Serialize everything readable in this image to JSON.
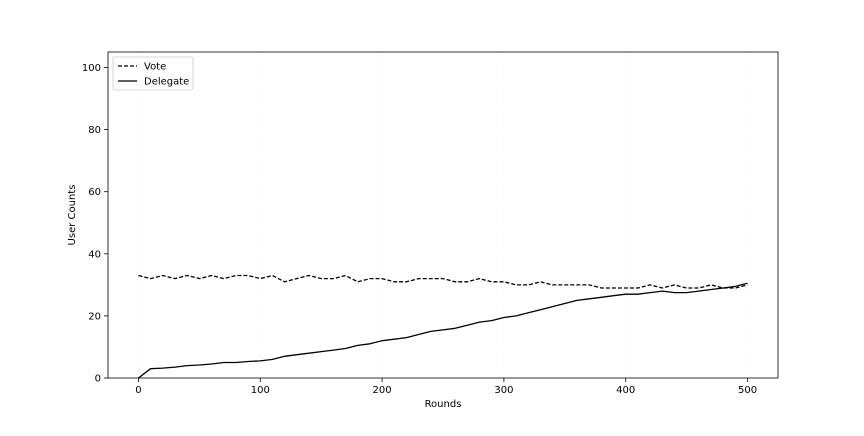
{
  "chart_data": {
    "type": "line",
    "title": "",
    "xlabel": "Rounds",
    "ylabel": "User Counts",
    "xlim": [
      -25,
      525
    ],
    "ylim": [
      0,
      105
    ],
    "xticks": [
      0,
      100,
      200,
      300,
      400,
      500
    ],
    "yticks": [
      0,
      20,
      40,
      60,
      80,
      100
    ],
    "grid": "vertical-faint",
    "legend_position": "top-left",
    "series": [
      {
        "name": "Vote",
        "style": "dashed",
        "color": "#000000",
        "x": [
          0,
          10,
          20,
          30,
          40,
          50,
          60,
          70,
          80,
          90,
          100,
          110,
          120,
          130,
          140,
          150,
          160,
          170,
          180,
          190,
          200,
          210,
          220,
          230,
          240,
          250,
          260,
          270,
          280,
          290,
          300,
          310,
          320,
          330,
          340,
          350,
          360,
          370,
          380,
          390,
          400,
          410,
          420,
          430,
          440,
          450,
          460,
          470,
          480,
          490,
          500
        ],
        "values": [
          33,
          32,
          33,
          32,
          33,
          32,
          33,
          32,
          33,
          33,
          32,
          33,
          31,
          32,
          33,
          32,
          32,
          33,
          31,
          32,
          32,
          31,
          31,
          32,
          32,
          32,
          31,
          31,
          32,
          31,
          31,
          30,
          30,
          31,
          30,
          30,
          30,
          30,
          29,
          29,
          29,
          29,
          30,
          29,
          30,
          29,
          29,
          30,
          29,
          29,
          30
        ]
      },
      {
        "name": "Delegate",
        "style": "solid",
        "color": "#000000",
        "x": [
          0,
          10,
          20,
          30,
          40,
          50,
          60,
          70,
          80,
          90,
          100,
          110,
          120,
          130,
          140,
          150,
          160,
          170,
          180,
          190,
          200,
          210,
          220,
          230,
          240,
          250,
          260,
          270,
          280,
          290,
          300,
          310,
          320,
          330,
          340,
          350,
          360,
          370,
          380,
          390,
          400,
          410,
          420,
          430,
          440,
          450,
          460,
          470,
          480,
          490,
          500
        ],
        "values": [
          0,
          3,
          3.2,
          3.5,
          4,
          4.2,
          4.5,
          5,
          5,
          5.3,
          5.5,
          6,
          7,
          7.5,
          8,
          8.5,
          9,
          9.5,
          10.5,
          11,
          12,
          12.5,
          13,
          14,
          15,
          15.5,
          16,
          17,
          18,
          18.5,
          19.5,
          20,
          21,
          22,
          23,
          24,
          25,
          25.5,
          26,
          26.5,
          27,
          27,
          27.5,
          28,
          27.5,
          27.5,
          28,
          28.5,
          29,
          29.5,
          30.5
        ]
      }
    ]
  }
}
